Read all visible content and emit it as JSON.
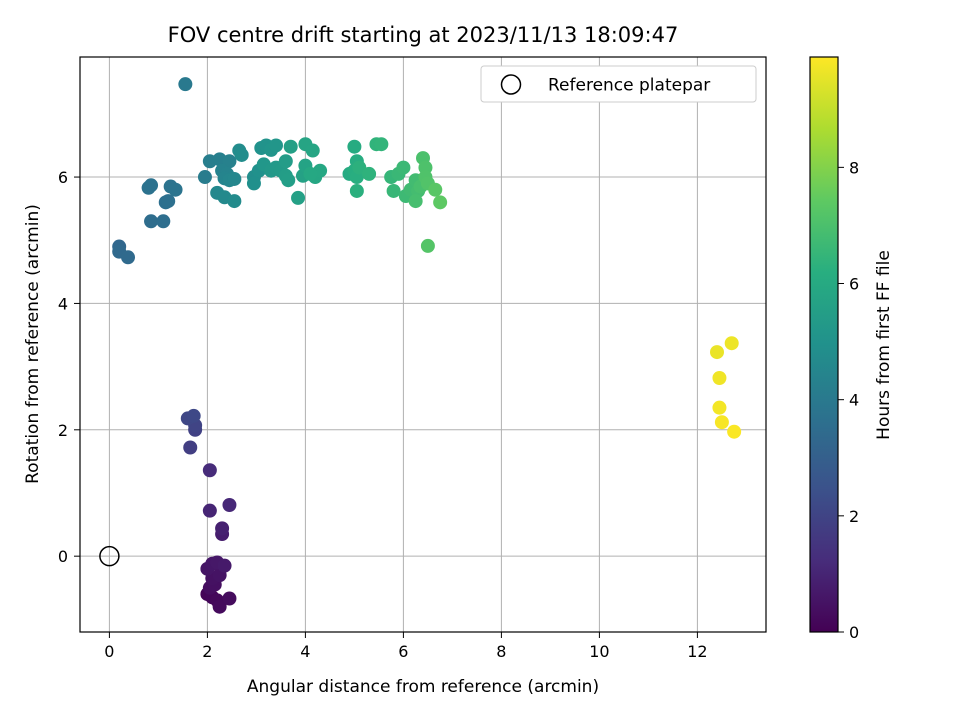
{
  "chart_data": {
    "type": "scatter",
    "title": "FOV centre drift starting at 2023/11/13 18:09:47",
    "xlabel": "Angular distance from reference (arcmin)",
    "ylabel": "Rotation from reference (arcmin)",
    "xlim": [
      -0.6,
      13.4
    ],
    "ylim": [
      -1.2,
      7.9
    ],
    "xticks": [
      0,
      2,
      4,
      6,
      8,
      10,
      12
    ],
    "yticks": [
      0,
      2,
      4,
      6
    ],
    "grid": true,
    "legend": {
      "position": "upper right",
      "entries": [
        "Reference platepar"
      ]
    },
    "reference_point": {
      "x": 0,
      "y": 0
    },
    "colorbar": {
      "label": "Hours from first FF file",
      "range": [
        0,
        9.9
      ],
      "ticks": [
        0,
        2,
        4,
        6,
        8
      ],
      "colormap": "viridis"
    },
    "points": [
      {
        "x": 2.0,
        "y": -0.6,
        "h": 0.1
      },
      {
        "x": 2.1,
        "y": -0.65,
        "h": 0.15
      },
      {
        "x": 2.2,
        "y": -0.7,
        "h": 0.2
      },
      {
        "x": 2.25,
        "y": -0.8,
        "h": 0.25
      },
      {
        "x": 2.45,
        "y": -0.67,
        "h": 0.3
      },
      {
        "x": 2.05,
        "y": -0.5,
        "h": 0.35
      },
      {
        "x": 2.15,
        "y": -0.45,
        "h": 0.4
      },
      {
        "x": 2.1,
        "y": -0.35,
        "h": 0.45
      },
      {
        "x": 2.25,
        "y": -0.3,
        "h": 0.5
      },
      {
        "x": 2.0,
        "y": -0.2,
        "h": 0.55
      },
      {
        "x": 2.1,
        "y": -0.12,
        "h": 0.6
      },
      {
        "x": 2.2,
        "y": -0.1,
        "h": 0.65
      },
      {
        "x": 2.35,
        "y": -0.15,
        "h": 0.7
      },
      {
        "x": 2.3,
        "y": 0.35,
        "h": 0.8
      },
      {
        "x": 2.3,
        "y": 0.44,
        "h": 0.9
      },
      {
        "x": 2.05,
        "y": 0.72,
        "h": 1.0
      },
      {
        "x": 2.45,
        "y": 0.81,
        "h": 1.1
      },
      {
        "x": 2.05,
        "y": 1.36,
        "h": 1.2
      },
      {
        "x": 1.65,
        "y": 1.72,
        "h": 1.8
      },
      {
        "x": 1.75,
        "y": 2.0,
        "h": 1.9
      },
      {
        "x": 1.75,
        "y": 2.07,
        "h": 2.0
      },
      {
        "x": 1.6,
        "y": 2.18,
        "h": 2.1
      },
      {
        "x": 1.72,
        "y": 2.22,
        "h": 2.15
      },
      {
        "x": 0.2,
        "y": 4.9,
        "h": 3.3
      },
      {
        "x": 0.2,
        "y": 4.82,
        "h": 3.35
      },
      {
        "x": 0.38,
        "y": 4.73,
        "h": 3.4
      },
      {
        "x": 0.85,
        "y": 5.3,
        "h": 3.5
      },
      {
        "x": 1.1,
        "y": 5.3,
        "h": 3.55
      },
      {
        "x": 1.15,
        "y": 5.6,
        "h": 3.6
      },
      {
        "x": 1.2,
        "y": 5.62,
        "h": 3.65
      },
      {
        "x": 0.8,
        "y": 5.83,
        "h": 3.7
      },
      {
        "x": 0.85,
        "y": 5.87,
        "h": 3.72
      },
      {
        "x": 1.25,
        "y": 5.85,
        "h": 3.75
      },
      {
        "x": 1.35,
        "y": 5.8,
        "h": 3.8
      },
      {
        "x": 1.55,
        "y": 7.47,
        "h": 4.0
      },
      {
        "x": 1.95,
        "y": 6.0,
        "h": 4.1
      },
      {
        "x": 2.05,
        "y": 6.25,
        "h": 4.2
      },
      {
        "x": 2.25,
        "y": 6.28,
        "h": 4.25
      },
      {
        "x": 2.45,
        "y": 6.25,
        "h": 4.3
      },
      {
        "x": 2.3,
        "y": 6.1,
        "h": 4.35
      },
      {
        "x": 2.4,
        "y": 6.05,
        "h": 4.4
      },
      {
        "x": 2.35,
        "y": 5.98,
        "h": 4.45
      },
      {
        "x": 2.45,
        "y": 5.95,
        "h": 4.5
      },
      {
        "x": 2.55,
        "y": 5.97,
        "h": 4.55
      },
      {
        "x": 2.2,
        "y": 5.75,
        "h": 4.6
      },
      {
        "x": 2.35,
        "y": 5.68,
        "h": 4.65
      },
      {
        "x": 2.55,
        "y": 5.62,
        "h": 4.7
      },
      {
        "x": 2.65,
        "y": 6.42,
        "h": 4.75
      },
      {
        "x": 2.7,
        "y": 6.35,
        "h": 4.8
      },
      {
        "x": 2.95,
        "y": 6.0,
        "h": 4.85
      },
      {
        "x": 2.95,
        "y": 5.9,
        "h": 4.9
      },
      {
        "x": 3.05,
        "y": 6.1,
        "h": 4.95
      },
      {
        "x": 3.1,
        "y": 6.46,
        "h": 5.0
      },
      {
        "x": 3.2,
        "y": 6.5,
        "h": 5.05
      },
      {
        "x": 3.3,
        "y": 6.43,
        "h": 5.1
      },
      {
        "x": 3.4,
        "y": 6.5,
        "h": 5.15
      },
      {
        "x": 3.15,
        "y": 6.2,
        "h": 5.2
      },
      {
        "x": 3.3,
        "y": 6.1,
        "h": 5.25
      },
      {
        "x": 3.4,
        "y": 6.15,
        "h": 5.3
      },
      {
        "x": 3.5,
        "y": 6.1,
        "h": 5.35
      },
      {
        "x": 3.6,
        "y": 6.25,
        "h": 5.4
      },
      {
        "x": 3.6,
        "y": 6.02,
        "h": 5.45
      },
      {
        "x": 3.65,
        "y": 5.95,
        "h": 5.5
      },
      {
        "x": 3.7,
        "y": 6.48,
        "h": 5.55
      },
      {
        "x": 3.85,
        "y": 5.67,
        "h": 5.6
      },
      {
        "x": 3.95,
        "y": 6.02,
        "h": 5.65
      },
      {
        "x": 4.0,
        "y": 6.18,
        "h": 5.7
      },
      {
        "x": 4.0,
        "y": 6.52,
        "h": 5.75
      },
      {
        "x": 4.15,
        "y": 6.42,
        "h": 5.8
      },
      {
        "x": 4.2,
        "y": 6.0,
        "h": 5.85
      },
      {
        "x": 4.3,
        "y": 6.1,
        "h": 5.9
      },
      {
        "x": 4.1,
        "y": 6.05,
        "h": 5.92
      },
      {
        "x": 4.9,
        "y": 6.05,
        "h": 6.0
      },
      {
        "x": 5.0,
        "y": 6.48,
        "h": 6.05
      },
      {
        "x": 5.05,
        "y": 6.25,
        "h": 6.1
      },
      {
        "x": 5.0,
        "y": 6.1,
        "h": 6.15
      },
      {
        "x": 5.05,
        "y": 6.0,
        "h": 6.2
      },
      {
        "x": 5.05,
        "y": 5.78,
        "h": 6.25
      },
      {
        "x": 5.1,
        "y": 6.15,
        "h": 6.3
      },
      {
        "x": 5.3,
        "y": 6.05,
        "h": 6.35
      },
      {
        "x": 5.45,
        "y": 6.52,
        "h": 6.4
      },
      {
        "x": 5.55,
        "y": 6.52,
        "h": 6.45
      },
      {
        "x": 5.75,
        "y": 6.0,
        "h": 6.5
      },
      {
        "x": 5.8,
        "y": 5.78,
        "h": 6.55
      },
      {
        "x": 5.9,
        "y": 6.05,
        "h": 6.6
      },
      {
        "x": 6.0,
        "y": 6.15,
        "h": 6.65
      },
      {
        "x": 6.05,
        "y": 5.7,
        "h": 6.7
      },
      {
        "x": 6.15,
        "y": 5.8,
        "h": 6.75
      },
      {
        "x": 6.25,
        "y": 5.95,
        "h": 6.8
      },
      {
        "x": 6.3,
        "y": 5.78,
        "h": 6.85
      },
      {
        "x": 6.25,
        "y": 5.62,
        "h": 6.9
      },
      {
        "x": 6.35,
        "y": 5.85,
        "h": 6.95
      },
      {
        "x": 6.4,
        "y": 6.3,
        "h": 7.0
      },
      {
        "x": 6.45,
        "y": 6.15,
        "h": 7.05
      },
      {
        "x": 6.45,
        "y": 6.0,
        "h": 7.1
      },
      {
        "x": 6.5,
        "y": 5.9,
        "h": 7.15
      },
      {
        "x": 6.5,
        "y": 4.91,
        "h": 7.2
      },
      {
        "x": 6.65,
        "y": 5.8,
        "h": 7.3
      },
      {
        "x": 6.75,
        "y": 5.6,
        "h": 7.4
      },
      {
        "x": 12.4,
        "y": 3.23,
        "h": 9.6
      },
      {
        "x": 12.7,
        "y": 3.37,
        "h": 9.65
      },
      {
        "x": 12.45,
        "y": 2.82,
        "h": 9.7
      },
      {
        "x": 12.45,
        "y": 2.35,
        "h": 9.75
      },
      {
        "x": 12.5,
        "y": 2.12,
        "h": 9.8
      },
      {
        "x": 12.75,
        "y": 1.97,
        "h": 9.85
      }
    ]
  }
}
